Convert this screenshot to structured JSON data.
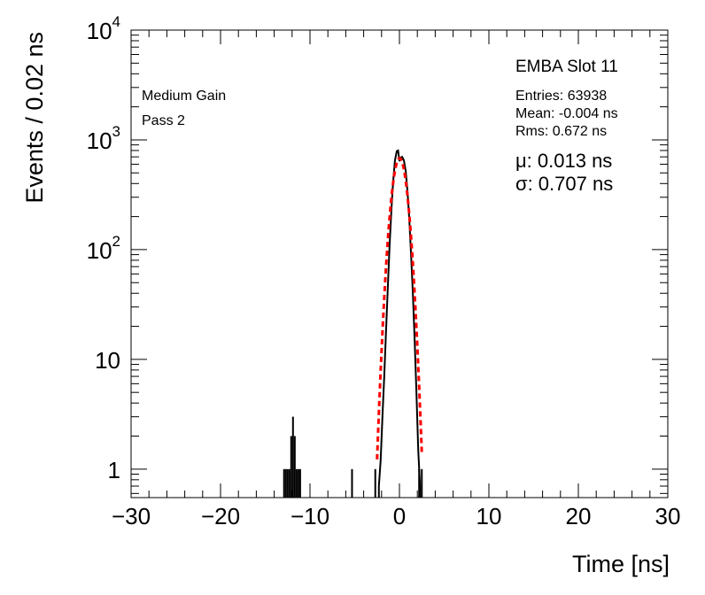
{
  "chart_data": {
    "type": "histogram",
    "title": "",
    "xlabel": "Time [ns]",
    "ylabel": "Events / 0.02 ns",
    "xlim": [
      -30,
      30
    ],
    "ylim": [
      0.55,
      10000
    ],
    "y_scale": "log",
    "x_ticks": [
      -30,
      -20,
      -10,
      0,
      10,
      20,
      30
    ],
    "x_tick_labels": [
      "−30",
      "−20",
      "−10",
      "0",
      "10",
      "20",
      "30"
    ],
    "y_ticks": [
      1,
      10,
      100,
      1000,
      10000
    ],
    "y_tick_labels": [
      {
        "base": "1",
        "exp": ""
      },
      {
        "base": "10",
        "exp": ""
      },
      {
        "base": "10",
        "exp": "2"
      },
      {
        "base": "10",
        "exp": "3"
      },
      {
        "base": "10",
        "exp": "4"
      }
    ],
    "annotations": [
      "Medium Gain",
      "Pass 2"
    ],
    "stats": {
      "title": "EMBA Slot 11",
      "entries": "Entries: 63938",
      "mean": "Mean: -0.004 ns",
      "rms": "Rms: 0.672 ns"
    },
    "fit": {
      "mu_label": "μ: 0.013 ns",
      "sigma_label": "σ: 0.707 ns",
      "function": "gaussian",
      "constant": 680,
      "mu": 0.013,
      "sigma": 0.707,
      "range": [
        -2.5,
        2.5
      ],
      "color": "#ff0000"
    },
    "histogram": {
      "color": "#000000",
      "bin_width": 0.02,
      "spike_bins": [
        {
          "x": -12.9,
          "y": 1
        },
        {
          "x": -12.7,
          "y": 1
        },
        {
          "x": -12.5,
          "y": 1
        },
        {
          "x": -12.3,
          "y": 1
        },
        {
          "x": -12.1,
          "y": 2
        },
        {
          "x": -11.9,
          "y": 3
        },
        {
          "x": -11.7,
          "y": 2
        },
        {
          "x": -11.5,
          "y": 1
        },
        {
          "x": -11.3,
          "y": 1
        },
        {
          "x": -11.1,
          "y": 1
        },
        {
          "x": -5.3,
          "y": 1
        },
        {
          "x": -2.7,
          "y": 1
        },
        {
          "x": 2.2,
          "y": 1
        },
        {
          "x": 2.5,
          "y": 1
        }
      ],
      "peak_points": [
        {
          "x": -2.3,
          "y": 0.7
        },
        {
          "x": -2.1,
          "y": 1.2
        },
        {
          "x": -1.9,
          "y": 3
        },
        {
          "x": -1.7,
          "y": 7
        },
        {
          "x": -1.5,
          "y": 18
        },
        {
          "x": -1.3,
          "y": 45
        },
        {
          "x": -1.1,
          "y": 110
        },
        {
          "x": -0.9,
          "y": 230
        },
        {
          "x": -0.7,
          "y": 420
        },
        {
          "x": -0.5,
          "y": 650
        },
        {
          "x": -0.3,
          "y": 790
        },
        {
          "x": -0.15,
          "y": 800
        },
        {
          "x": 0.0,
          "y": 640
        },
        {
          "x": 0.15,
          "y": 690
        },
        {
          "x": 0.3,
          "y": 700
        },
        {
          "x": 0.5,
          "y": 650
        },
        {
          "x": 0.7,
          "y": 520
        },
        {
          "x": 0.9,
          "y": 340
        },
        {
          "x": 1.1,
          "y": 190
        },
        {
          "x": 1.3,
          "y": 90
        },
        {
          "x": 1.5,
          "y": 40
        },
        {
          "x": 1.7,
          "y": 15
        },
        {
          "x": 1.9,
          "y": 5
        },
        {
          "x": 2.1,
          "y": 1.5
        },
        {
          "x": 2.3,
          "y": 0.7
        }
      ]
    }
  }
}
